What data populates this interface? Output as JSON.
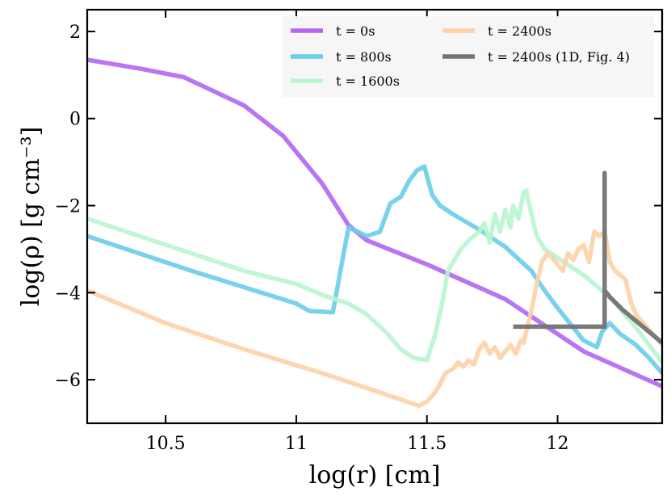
{
  "chart_data": {
    "type": "line",
    "xlabel": "log(r) [cm]",
    "ylabel": "log(ρ) [g cm⁻³]",
    "xlim": [
      10.2,
      12.4
    ],
    "ylim": [
      -7,
      2.5
    ],
    "xticks": [
      10.5,
      11,
      11.5,
      12
    ],
    "xtick_labels": [
      "10.5",
      "11",
      "11.5",
      "12"
    ],
    "yticks": [
      2,
      0,
      -2,
      -4,
      -6
    ],
    "ytick_labels": [
      "2",
      "0",
      "−2",
      "−4",
      "−6"
    ],
    "grid": false,
    "legend_position": "top-right",
    "series": [
      {
        "name": "t = 0s",
        "color": "#b266f2",
        "x": [
          10.2,
          10.4,
          10.57,
          10.8,
          10.95,
          11.1,
          11.2,
          11.27,
          11.5,
          11.8,
          12.1,
          12.4
        ],
        "y": [
          1.35,
          1.15,
          0.95,
          0.3,
          -0.4,
          -1.5,
          -2.45,
          -2.8,
          -3.35,
          -4.15,
          -5.35,
          -6.15
        ]
      },
      {
        "name": "t = 800s",
        "color": "#6acde9",
        "x": [
          10.2,
          10.6,
          11.0,
          11.05,
          11.14,
          11.2,
          11.27,
          11.32,
          11.36,
          11.4,
          11.43,
          11.46,
          11.49,
          11.52,
          11.55,
          11.6,
          11.7,
          11.8,
          11.9,
          11.95,
          12.0,
          12.1,
          12.15,
          12.17,
          12.2,
          12.24,
          12.3,
          12.35,
          12.4
        ],
        "y": [
          -2.7,
          -3.5,
          -4.25,
          -4.42,
          -4.45,
          -2.5,
          -2.7,
          -2.6,
          -1.95,
          -1.8,
          -1.45,
          -1.2,
          -1.1,
          -1.75,
          -2.0,
          -2.2,
          -2.55,
          -2.95,
          -3.5,
          -3.95,
          -4.35,
          -5.1,
          -5.25,
          -4.9,
          -4.7,
          -4.95,
          -5.2,
          -5.5,
          -5.85
        ]
      },
      {
        "name": "t = 1600s",
        "color": "#b8f5d0",
        "x": [
          10.2,
          10.4,
          10.6,
          10.8,
          11.0,
          11.1,
          11.2,
          11.27,
          11.35,
          11.4,
          11.45,
          11.5,
          11.53,
          11.56,
          11.58,
          11.6,
          11.63,
          11.66,
          11.7,
          11.72,
          11.74,
          11.76,
          11.78,
          11.8,
          11.82,
          11.83,
          11.85,
          11.87,
          11.88,
          11.9,
          11.92,
          11.95,
          12.0,
          12.1,
          12.2,
          12.3,
          12.4
        ],
        "y": [
          -2.3,
          -2.7,
          -3.1,
          -3.5,
          -3.8,
          -4.05,
          -4.25,
          -4.5,
          -4.95,
          -5.3,
          -5.5,
          -5.55,
          -5.0,
          -4.2,
          -3.5,
          -3.3,
          -3.0,
          -2.8,
          -2.6,
          -2.4,
          -2.85,
          -2.2,
          -2.6,
          -2.1,
          -2.5,
          -2.0,
          -2.3,
          -1.7,
          -1.65,
          -2.2,
          -2.7,
          -3.0,
          -3.2,
          -3.6,
          -4.1,
          -4.8,
          -5.6
        ]
      },
      {
        "name": "t = 2400s",
        "color": "#fdd2a6",
        "x": [
          10.2,
          10.5,
          10.8,
          11.1,
          11.3,
          11.47,
          11.5,
          11.53,
          11.55,
          11.57,
          11.6,
          11.62,
          11.64,
          11.66,
          11.68,
          11.7,
          11.72,
          11.74,
          11.76,
          11.78,
          11.8,
          11.82,
          11.84,
          11.86,
          11.87,
          11.88,
          11.9,
          11.92,
          11.94,
          11.96,
          11.98,
          12.0,
          12.02,
          12.04,
          12.06,
          12.08,
          12.1,
          12.12,
          12.14,
          12.16,
          12.18,
          12.2,
          12.22,
          12.24,
          12.26,
          12.28,
          12.3,
          12.35,
          12.4
        ],
        "y": [
          -3.95,
          -4.7,
          -5.3,
          -5.85,
          -6.25,
          -6.6,
          -6.5,
          -6.3,
          -6.1,
          -5.85,
          -5.75,
          -5.6,
          -5.7,
          -5.55,
          -5.65,
          -5.3,
          -5.15,
          -5.4,
          -5.25,
          -5.5,
          -5.35,
          -5.2,
          -5.4,
          -5.1,
          -5.15,
          -4.9,
          -4.4,
          -3.8,
          -3.3,
          -3.1,
          -3.2,
          -3.35,
          -3.5,
          -3.1,
          -3.25,
          -3.0,
          -2.9,
          -3.3,
          -2.6,
          -2.7,
          -2.6,
          -3.3,
          -3.5,
          -3.6,
          -3.7,
          -4.2,
          -4.5,
          -4.85,
          -5.2
        ]
      },
      {
        "name": "t = 2400s (1D, Fig. 4)",
        "color": "#737373",
        "x": [
          11.83,
          12.18,
          12.18,
          12.18,
          12.2,
          12.25,
          12.3,
          12.35,
          12.4
        ],
        "y": [
          -4.78,
          -4.78,
          -1.25,
          -3.95,
          -4.1,
          -4.4,
          -4.65,
          -4.9,
          -5.15
        ]
      }
    ]
  }
}
